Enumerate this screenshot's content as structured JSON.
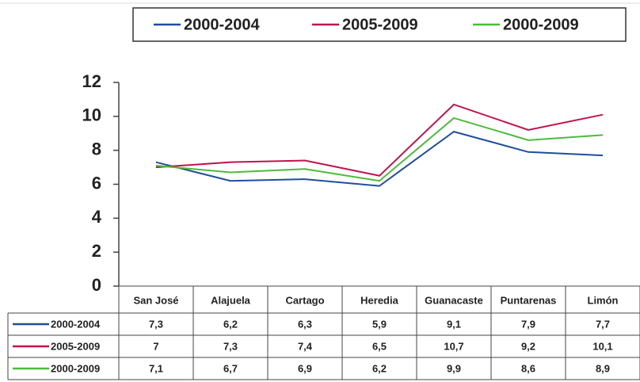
{
  "chart_data": {
    "type": "line",
    "categories": [
      "San José",
      "Alajuela",
      "Cartago",
      "Heredia",
      "Guanacaste",
      "Puntarenas",
      "Limón"
    ],
    "series": [
      {
        "name": "2000-2004",
        "color": "#1f4e9a",
        "values": [
          7.3,
          6.2,
          6.3,
          5.9,
          9.1,
          7.9,
          7.7
        ],
        "value_labels": [
          "7,3",
          "6,2",
          "6,3",
          "5,9",
          "9,1",
          "7,9",
          "7,7"
        ]
      },
      {
        "name": "2005-2009",
        "color": "#c0144c",
        "values": [
          7,
          7.3,
          7.4,
          6.5,
          10.7,
          9.2,
          10.1
        ],
        "value_labels": [
          "7",
          "7,3",
          "7,4",
          "6,5",
          "10,7",
          "9,2",
          "10,1"
        ]
      },
      {
        "name": "2000-2009",
        "color": "#4cbb3c",
        "values": [
          7.1,
          6.7,
          6.9,
          6.2,
          9.9,
          8.6,
          8.9
        ],
        "value_labels": [
          "7,1",
          "6,7",
          "6,9",
          "6,2",
          "9,9",
          "8,6",
          "8,9"
        ]
      }
    ],
    "ylim": [
      0,
      12
    ],
    "yticks": [
      0,
      2,
      4,
      6,
      8,
      10,
      12
    ]
  }
}
